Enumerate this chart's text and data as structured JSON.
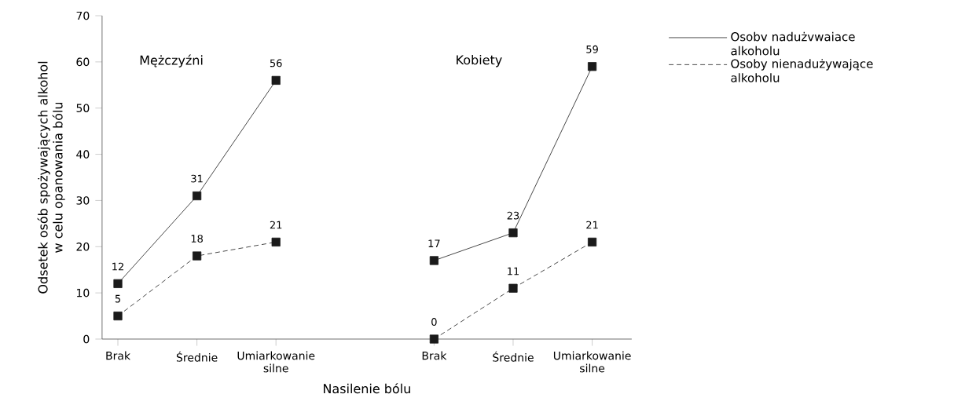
{
  "chart_data": {
    "type": "line",
    "xlabel": "Nasilenie bólu",
    "ylabel": "Odsetek osób spożywających alkohol\nw celu opanowania bólu",
    "categories": [
      "Brak",
      "Średnie",
      "Umiarkowanie silne",
      null,
      "Brak",
      "Średnie",
      "Umiarkowanie silne"
    ],
    "series": [
      {
        "name": "Osobv nadużvwaiace alkoholu",
        "color": "#1a1a1a",
        "line_style": "solid",
        "values": [
          12,
          31,
          56,
          null,
          17,
          23,
          59
        ]
      },
      {
        "name": "Osoby nienadużywające alkoholu",
        "color": "#1a1a1a",
        "line_style": "dashed",
        "values": [
          5,
          18,
          21,
          null,
          0,
          11,
          21
        ]
      }
    ],
    "annotations": [
      "Mężczyźni",
      "Kobiety"
    ],
    "ylim": [
      0,
      70
    ],
    "yticks": [
      0,
      10,
      20,
      30,
      40,
      50,
      60,
      70
    ],
    "marker": "square",
    "data_labels": true,
    "legend": "right",
    "grid": false
  }
}
